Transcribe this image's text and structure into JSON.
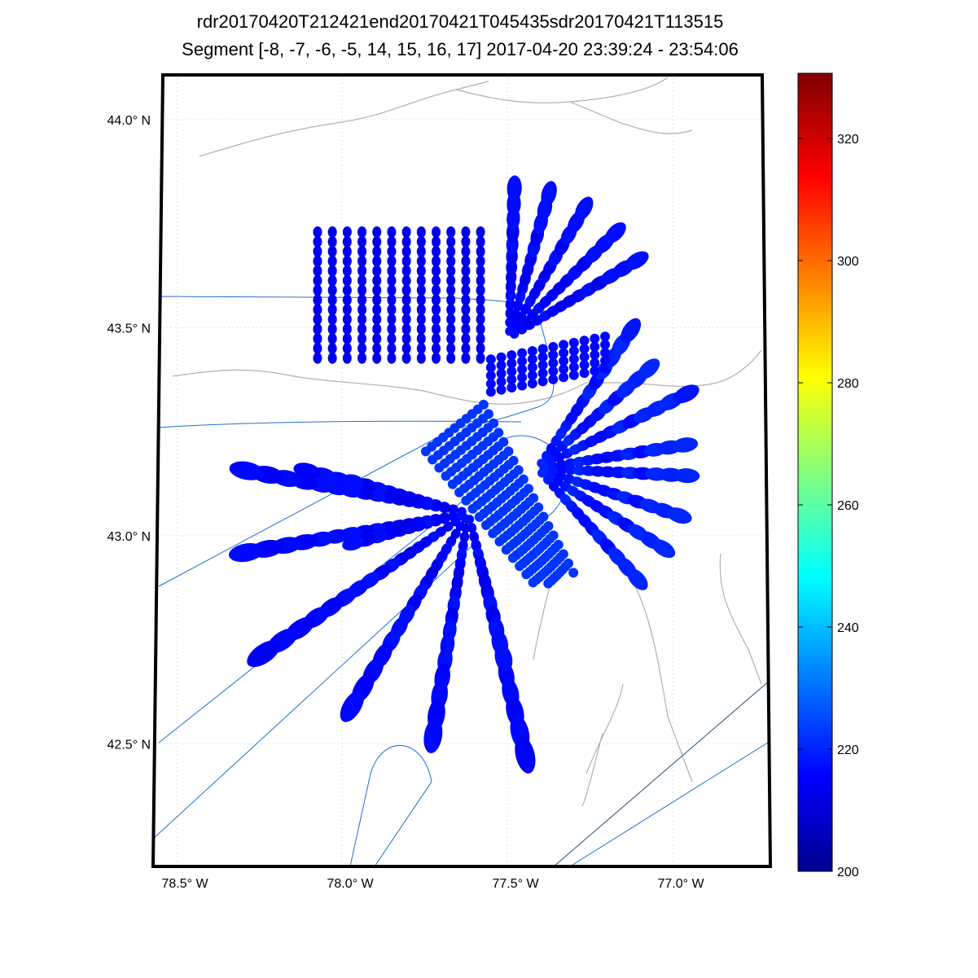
{
  "title_line1": "rdr20170420T212421end20170421T045435sdr20170421T113515",
  "title_line2": "Segment [-8, -7, -6, -5, 14, 15, 16, 17] 2017-04-20 23:39:24 - 23:54:06",
  "chart_data": {
    "type": "map-scatter",
    "lat_ticks": [
      {
        "value": 44.0,
        "label": "44.0° N"
      },
      {
        "value": 43.5,
        "label": "43.5° N"
      },
      {
        "value": 43.0,
        "label": "43.0° N"
      },
      {
        "value": 42.5,
        "label": "42.5° N"
      }
    ],
    "lon_ticks": [
      {
        "value": -78.5,
        "label": "78.5° W"
      },
      {
        "value": -78.0,
        "label": "78.0° W"
      },
      {
        "value": -77.5,
        "label": "77.5° W"
      },
      {
        "value": -77.0,
        "label": "77.0° W"
      }
    ],
    "lon_range": [
      -78.57,
      -76.69
    ],
    "lat_range": [
      42.18,
      44.11
    ],
    "colorbar": {
      "min": 200,
      "max": 330,
      "ticks": [
        200,
        220,
        240,
        260,
        280,
        300,
        320
      ],
      "colormap": "jet"
    },
    "grid_block": {
      "lon": [
        -78.074,
        -77.581
      ],
      "lat": [
        43.427,
        43.73
      ],
      "columns": 12,
      "rows": 14,
      "value": 214
    },
    "radial_groups": [
      {
        "center": [
          -77.618,
          43.055
        ],
        "value": 216,
        "ends": [
          [
            -78.333,
            43.163
          ],
          [
            -78.345,
            42.952
          ],
          [
            -78.246,
            42.712
          ],
          [
            -77.988,
            42.566
          ],
          [
            -77.729,
            42.497
          ],
          [
            -77.433,
            42.429
          ],
          [
            -77.507,
            42.703
          ],
          [
            -77.975,
            43.133
          ],
          [
            -78.135,
            43.162
          ],
          [
            -77.988,
            42.977
          ]
        ]
      },
      {
        "center": [
          -77.409,
          43.162
        ],
        "value": 219,
        "ends": [
          [
            -76.916,
            43.143
          ],
          [
            -76.966,
            43.045
          ],
          [
            -77.003,
            42.957
          ],
          [
            -77.076,
            42.869
          ],
          [
            -76.941,
            43.221
          ],
          [
            -76.941,
            43.348
          ],
          [
            -77.044,
            43.421
          ],
          [
            -77.125,
            43.495
          ]
        ]
      },
      {
        "center": [
          -77.495,
          43.476
        ],
        "value": 216,
        "ends": [
          [
            -77.478,
            43.847
          ],
          [
            -77.372,
            43.828
          ],
          [
            -77.266,
            43.789
          ],
          [
            -77.163,
            43.736
          ],
          [
            -77.101,
            43.665
          ]
        ]
      }
    ],
    "parallel_groups": [
      {
        "start_a": [
          -77.569,
          43.421
        ],
        "start_b": [
          -77.569,
          43.343
        ],
        "end_a": [
          -77.192,
          43.481
        ],
        "end_b": [
          -77.192,
          43.403
        ],
        "lines": 5,
        "value": 217
      },
      {
        "start_a": [
          -77.759,
          43.215
        ],
        "start_b": [
          -77.581,
          43.329
        ],
        "end_a": [
          -77.409,
          42.875
        ],
        "end_b": [
          -77.298,
          42.908
        ],
        "lines": 11,
        "value": 223
      }
    ]
  }
}
